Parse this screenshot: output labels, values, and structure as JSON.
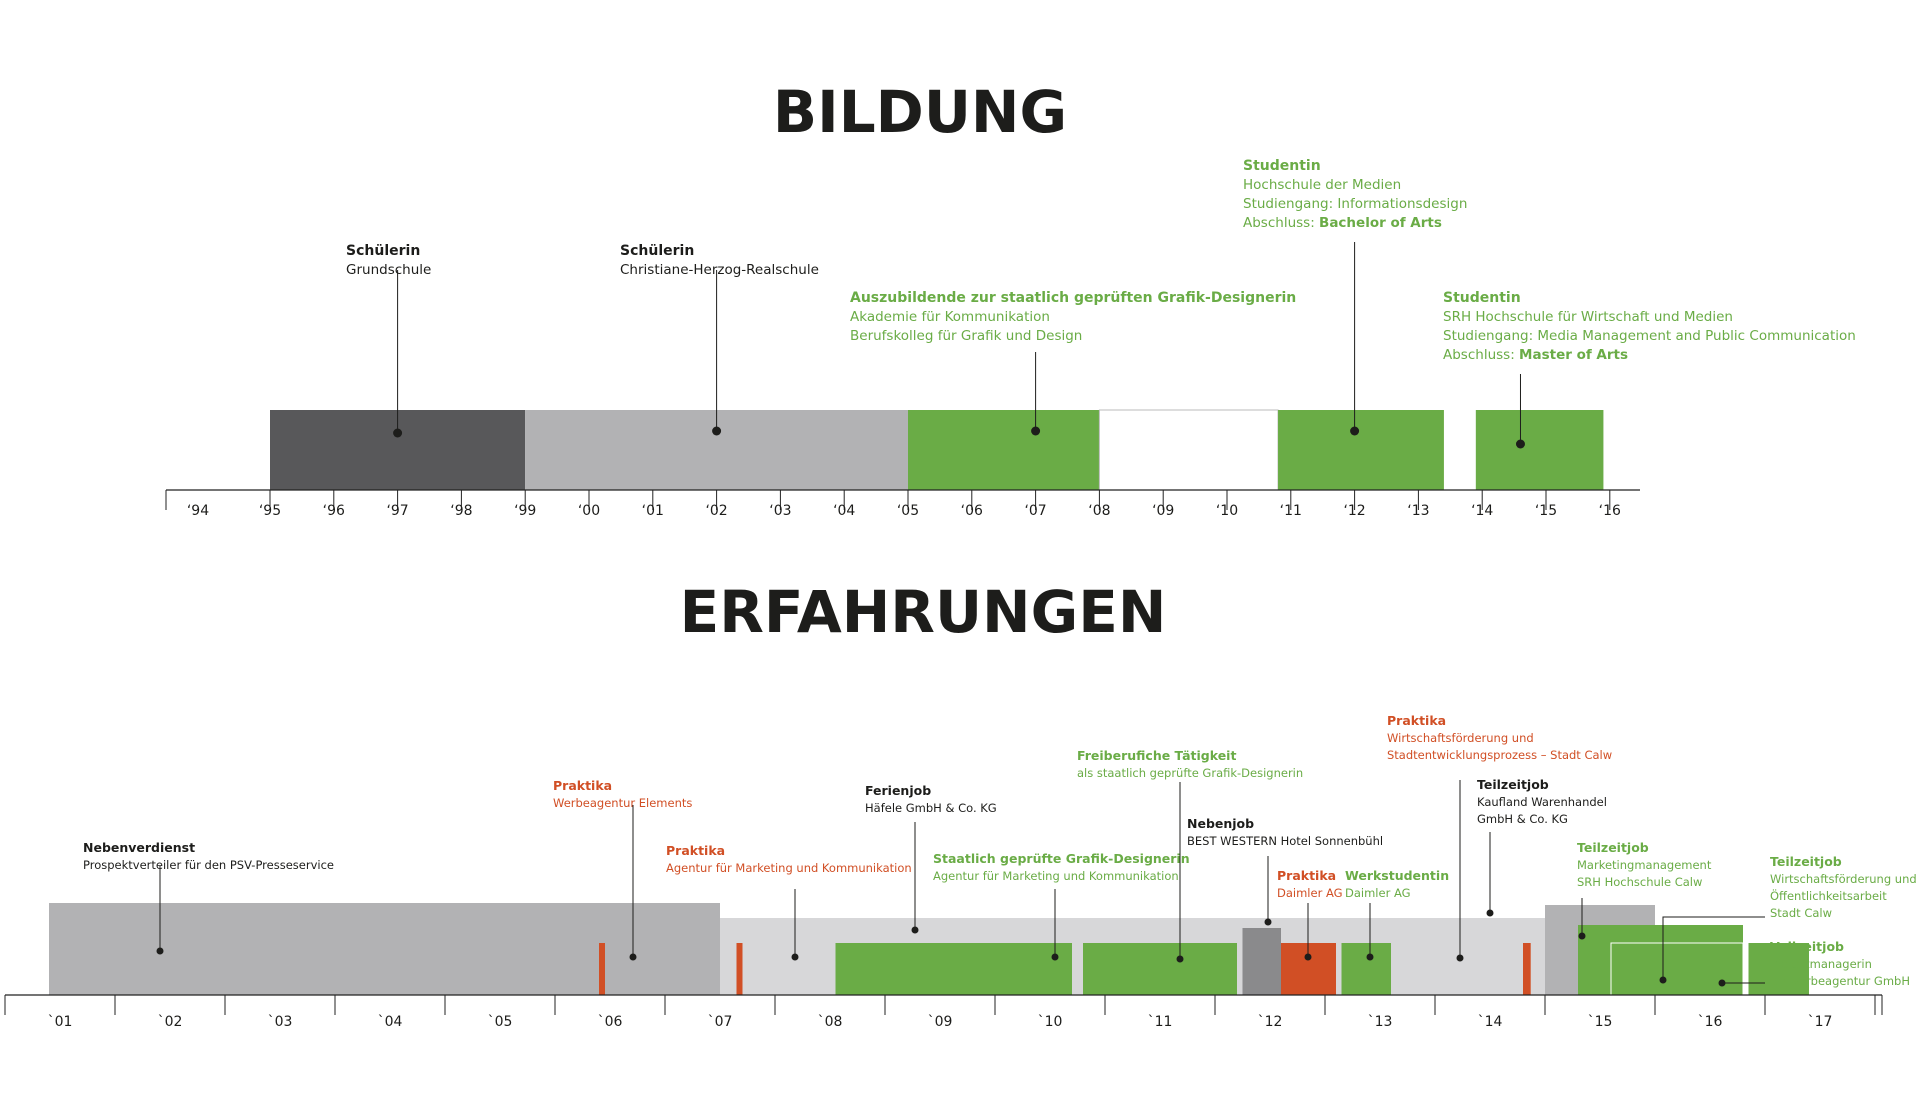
{
  "colors": {
    "dark": "#58585a",
    "gray": "#b2b2b4",
    "lightgray": "#d7d7d9",
    "midgray": "#8a8a8c",
    "green": "#6aac46",
    "orange": "#d14f25",
    "text_dark": "#1d1d1b"
  },
  "bildung": {
    "title": "BILDUNG",
    "ticks": [
      "‘94",
      "‘95",
      "‘96",
      "‘97",
      "‘98",
      "‘99",
      "‘00",
      "‘01",
      "‘02",
      "‘03",
      "‘04",
      "‘05",
      "‘06",
      "‘07",
      "‘08",
      "‘09",
      "‘10",
      "‘11",
      "‘12",
      "‘13",
      "‘14",
      "‘15",
      "‘16"
    ],
    "bars": [
      {
        "start": 1995,
        "end": 1999,
        "color": "dark"
      },
      {
        "start": 1999,
        "end": 2005,
        "color": "gray"
      },
      {
        "start": 2005,
        "end": 2008,
        "color": "green"
      },
      {
        "start": 2008,
        "end": 2010.8,
        "color": "outline"
      },
      {
        "start": 2010.8,
        "end": 2013.4,
        "color": "green"
      },
      {
        "start": 2013.9,
        "end": 2015.9,
        "color": "green"
      }
    ],
    "annotations": [
      {
        "title": "Schülerin",
        "lines": [
          "Grundschule"
        ],
        "color": "dark",
        "point": 1997
      },
      {
        "title": "Schülerin",
        "lines": [
          "Christiane-Herzog-Realschule"
        ],
        "color": "dark",
        "point": 2002
      },
      {
        "title": "Auszubildende zur staatlich geprüften Grafik-Designerin",
        "lines": [
          "Akademie für Kommunikation",
          "Berufskolleg für Grafik und Design"
        ],
        "color": "green",
        "point": 2007
      },
      {
        "title": "Studentin",
        "lines": [
          "Hochschule der Medien",
          "Studiengang: Informationsdesign"
        ],
        "degree_prefix": "Abschluss: ",
        "degree": "Bachelor of Arts",
        "color": "green",
        "point": 2012
      },
      {
        "title": "Studentin",
        "lines": [
          "SRH Hochschule für Wirtschaft und Medien",
          "Studiengang: Media Management and Public Communication"
        ],
        "degree_prefix": "Abschluss: ",
        "degree": "Master of Arts",
        "color": "green",
        "point": 2014.6
      }
    ]
  },
  "erfahrungen": {
    "title": "ERFAHRUNGEN",
    "ticks": [
      "`01",
      "`02",
      "`03",
      "`04",
      "`05",
      "`06",
      "`07",
      "`08",
      "`09",
      "`10",
      "`11",
      "`12",
      "`13",
      "`14",
      "`15",
      "`16",
      "`17"
    ],
    "bars": [
      {
        "start": 2000.4,
        "end": 2006.5,
        "color": "gray"
      },
      {
        "start": 2006.5,
        "end": 2014.0,
        "color": "lightgray"
      },
      {
        "start": 2014.0,
        "end": 2015.0,
        "color": "gray"
      },
      {
        "start": 2007.55,
        "end": 2009.7,
        "color": "green"
      },
      {
        "start": 2009.8,
        "end": 2011.2,
        "color": "green"
      },
      {
        "start": 2011.25,
        "end": 2011.6,
        "color": "midgray"
      },
      {
        "start": 2011.6,
        "end": 2012.1,
        "color": "orange"
      },
      {
        "start": 2012.15,
        "end": 2012.6,
        "color": "green"
      },
      {
        "start": 2014.3,
        "end": 2015.8,
        "color": "green"
      },
      {
        "start": 2014.6,
        "end": 2015.8,
        "color": "green_outline"
      },
      {
        "start": 2015.85,
        "end": 2016.4,
        "color": "green"
      },
      {
        "start": 2005.4,
        "end": 2005.45,
        "color": "orange"
      },
      {
        "start": 2006.65,
        "end": 2006.7,
        "color": "orange"
      },
      {
        "start": 2013.8,
        "end": 2013.87,
        "color": "orange"
      }
    ],
    "annotations": [
      {
        "title": "Nebenverdienst",
        "lines": [
          "Prospektverteiler für den PSV-Presseservice"
        ],
        "color": "dark"
      },
      {
        "title": "Praktika",
        "lines": [
          "Werbeagentur Elements"
        ],
        "color": "orange"
      },
      {
        "title": "Praktika",
        "lines": [
          "Agentur für Marketing und Kommunikation"
        ],
        "color": "orange"
      },
      {
        "title": "Ferienjob",
        "lines": [
          "Häfele GmbH & Co. KG"
        ],
        "color": "dark"
      },
      {
        "title": "Staatlich geprüfte Grafik-Designerin",
        "lines": [
          "Agentur für Marketing und Kommunikation"
        ],
        "color": "green"
      },
      {
        "title": "Freiberufiche Tätigkeit",
        "lines": [
          "als staatlich geprüfte Grafik-Designerin"
        ],
        "color": "green"
      },
      {
        "title": "Nebenjob",
        "lines": [
          "BEST WESTERN Hotel Sonnenbühl"
        ],
        "color": "dark"
      },
      {
        "title": "Praktika",
        "lines": [
          "Daimler AG"
        ],
        "color": "orange"
      },
      {
        "title": "Werkstudentin",
        "lines": [
          "Daimler AG"
        ],
        "color": "green"
      },
      {
        "title": "Praktika",
        "lines": [
          "Wirtschaftsförderung und",
          "Stadtentwicklungsprozess – Stadt Calw"
        ],
        "color": "orange"
      },
      {
        "title": "Teilzeitjob",
        "lines": [
          "Kaufland Warenhandel",
          "GmbH & Co. KG"
        ],
        "color": "dark"
      },
      {
        "title": "Teilzeitjob",
        "lines": [
          "Marketingmanagement",
          "SRH Hochschule Calw"
        ],
        "color": "green"
      },
      {
        "title": "Teilzeitjob",
        "lines": [
          "Wirtschaftsförderung und",
          "Öffentlichkeitsarbeit",
          "Stadt Calw"
        ],
        "color": "green"
      },
      {
        "title": "Vollzeitjob",
        "lines": [
          "Projektmanagerin",
          "BB werbeagentur GmbH"
        ],
        "color": "green"
      }
    ]
  }
}
